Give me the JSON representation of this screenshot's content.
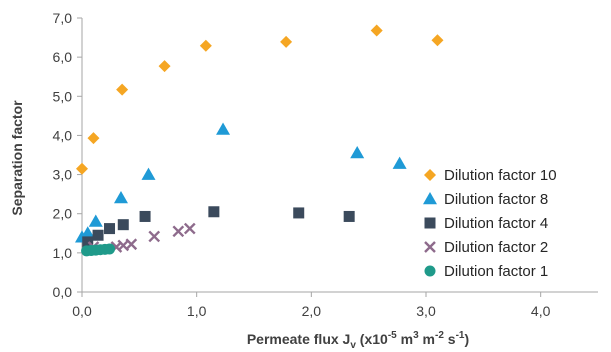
{
  "chart_data": {
    "type": "scatter",
    "xlabel": {
      "main": "Permeate flux J",
      "sub": "v",
      "rest": " (x10",
      "exp1": "-5",
      "unit1": " m",
      "exp2": "3",
      "unit2": " m",
      "exp3": "-2",
      "unit3": " s",
      "exp4": "-1",
      "close": ")"
    },
    "ylabel": "Separation factor",
    "xlim": [
      0,
      4.5
    ],
    "ylim": [
      0,
      7
    ],
    "x_ticks": [
      "0,0",
      "1,0",
      "2,0",
      "3,0",
      "4,0"
    ],
    "y_ticks": [
      "0,0",
      "1,0",
      "2,0",
      "3,0",
      "4,0",
      "5,0",
      "6,0",
      "7,0"
    ],
    "grid": false,
    "legend_position": "right",
    "series": [
      {
        "name": "Dilution factor 10",
        "marker": "diamond",
        "color": "#F5A623",
        "points": [
          [
            0.0,
            3.15
          ],
          [
            0.1,
            3.93
          ],
          [
            0.35,
            5.17
          ],
          [
            0.72,
            5.77
          ],
          [
            1.08,
            6.29
          ],
          [
            1.78,
            6.39
          ],
          [
            2.57,
            6.68
          ],
          [
            3.1,
            6.43
          ]
        ]
      },
      {
        "name": "Dilution factor 8",
        "marker": "triangle",
        "color": "#1F9AD6",
        "points": [
          [
            0.0,
            1.4
          ],
          [
            0.05,
            1.5
          ],
          [
            0.12,
            1.8
          ],
          [
            0.34,
            2.4
          ],
          [
            0.58,
            3.0
          ],
          [
            1.23,
            4.15
          ],
          [
            2.4,
            3.55
          ],
          [
            2.77,
            3.28
          ]
        ]
      },
      {
        "name": "Dilution factor 4",
        "marker": "square",
        "color": "#3B4A5C",
        "points": [
          [
            0.05,
            1.28
          ],
          [
            0.14,
            1.45
          ],
          [
            0.24,
            1.62
          ],
          [
            0.36,
            1.72
          ],
          [
            0.55,
            1.93
          ],
          [
            1.15,
            2.05
          ],
          [
            1.89,
            2.02
          ],
          [
            2.33,
            1.93
          ]
        ]
      },
      {
        "name": "Dilution factor 2",
        "marker": "x",
        "color": "#8E6B8C",
        "points": [
          [
            0.1,
            1.15
          ],
          [
            0.3,
            1.15
          ],
          [
            0.36,
            1.19
          ],
          [
            0.43,
            1.22
          ],
          [
            0.63,
            1.42
          ],
          [
            0.84,
            1.55
          ],
          [
            0.94,
            1.62
          ]
        ]
      },
      {
        "name": "Dilution factor 1",
        "marker": "circle",
        "color": "#1F9A8A",
        "points": [
          [
            0.04,
            1.05
          ],
          [
            0.08,
            1.06
          ],
          [
            0.12,
            1.07
          ],
          [
            0.16,
            1.08
          ],
          [
            0.2,
            1.09
          ],
          [
            0.24,
            1.1
          ]
        ]
      }
    ]
  }
}
